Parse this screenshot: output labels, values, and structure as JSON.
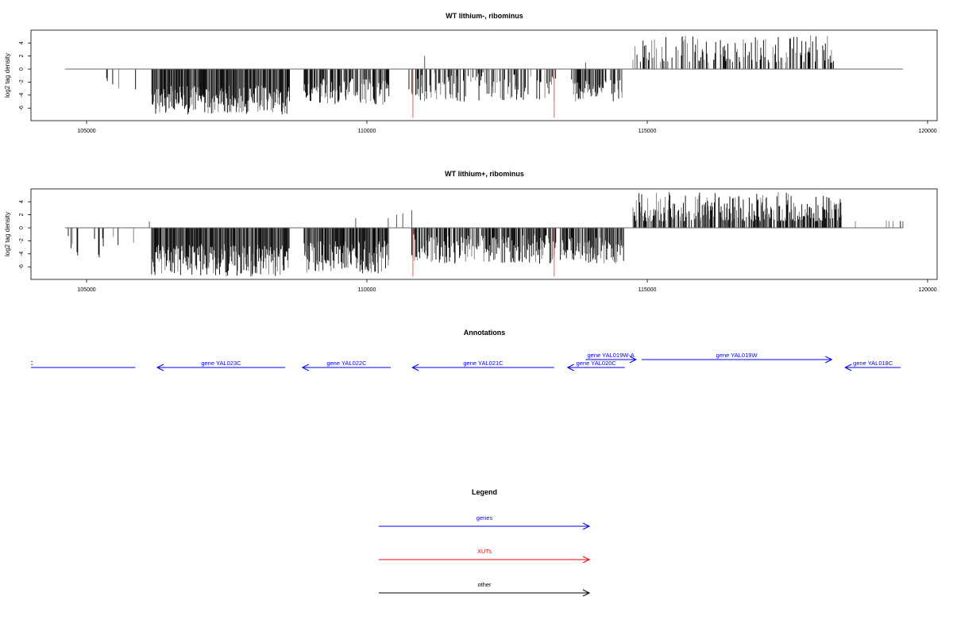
{
  "colors": {
    "gene": "#0000ff",
    "xut": "#ff0000",
    "other": "#000000",
    "bars": "#000000"
  },
  "chart_data": [
    {
      "type": "bar",
      "title": "WT lithium-, ribominus",
      "ylabel": "log2 tag density",
      "xlim": [
        104000,
        120300
      ],
      "ylim": [
        -8,
        6
      ],
      "xticks": [
        105000,
        110000,
        115000,
        120000
      ],
      "xtick_labels": [
        "105000",
        "110000",
        "115000",
        "120000"
      ],
      "yticks": [
        -6,
        -4,
        -2,
        0,
        2,
        4
      ],
      "ytick_labels": [
        "-6",
        "-4",
        "-2",
        "0",
        "2",
        "4"
      ],
      "baseline_range": [
        104618,
        119560
      ],
      "regions": [
        {
          "start": 104650,
          "end": 105900,
          "min": -4,
          "max": -1,
          "density": 0.08
        },
        {
          "start": 106160,
          "end": 108630,
          "min": -7,
          "max": -2.5,
          "density": 1
        },
        {
          "start": 108880,
          "end": 110400,
          "min": -5.5,
          "max": -1.5,
          "density": 0.8
        },
        {
          "start": 110750,
          "end": 113370,
          "min": -5,
          "max": -0.5,
          "density": 0.45
        },
        {
          "start": 113650,
          "end": 114575,
          "min": -5,
          "max": -1.5,
          "density": 0.7
        },
        {
          "start": 114745,
          "end": 118330,
          "min": 1,
          "max": 5.2,
          "density": 0.45
        }
      ],
      "spikes": [
        {
          "x": 111030,
          "y": 2
        },
        {
          "x": 113900,
          "y": 1
        }
      ],
      "xut_markers": [
        110820,
        113340
      ],
      "xut_depth": -7.5
    },
    {
      "type": "bar",
      "title": "WT lithium+, ribominus",
      "ylabel": "log2 tag density",
      "xlim": [
        104000,
        120300
      ],
      "ylim": [
        -8,
        6
      ],
      "xticks": [
        105000,
        110000,
        115000,
        120000
      ],
      "xtick_labels": [
        "105000",
        "110000",
        "115000",
        "120000"
      ],
      "yticks": [
        -6,
        -4,
        -2,
        0,
        2,
        4
      ],
      "ytick_labels": [
        "-6",
        "-4",
        "-2",
        "0",
        "2",
        "4"
      ],
      "baseline_range": [
        104618,
        119560
      ],
      "regions": [
        {
          "start": 104650,
          "end": 105900,
          "min": -5,
          "max": -1,
          "density": 0.12
        },
        {
          "start": 106160,
          "end": 108630,
          "min": -7.5,
          "max": -2.5,
          "density": 1
        },
        {
          "start": 108880,
          "end": 110400,
          "min": -7,
          "max": -2,
          "density": 1
        },
        {
          "start": 110800,
          "end": 113370,
          "min": -5.5,
          "max": -1,
          "density": 0.8
        },
        {
          "start": 113450,
          "end": 114580,
          "min": -5.5,
          "max": -1.5,
          "density": 0.9
        },
        {
          "start": 114745,
          "end": 118500,
          "min": 1,
          "max": 5.5,
          "density": 0.8
        },
        {
          "start": 118700,
          "end": 119560,
          "min": 1,
          "max": 2,
          "density": 0.04
        }
      ],
      "spikes": [
        {
          "x": 106120,
          "y": 1
        },
        {
          "x": 109800,
          "y": 1.5
        },
        {
          "x": 110380,
          "y": 1.5
        },
        {
          "x": 110530,
          "y": 2
        },
        {
          "x": 110640,
          "y": 2.2
        },
        {
          "x": 110800,
          "y": 2.7
        },
        {
          "x": 119560,
          "y": 1
        }
      ],
      "xut_markers": [
        110820,
        113340
      ],
      "xut_depth": -7.5
    }
  ],
  "annotations": {
    "title": "Annotations",
    "features": [
      {
        "label": "C",
        "start": 103500,
        "end": 105870,
        "strand": "-",
        "row": 1
      },
      {
        "label": "gene YAL023C",
        "start": 106260,
        "end": 108540,
        "strand": "-",
        "row": 1
      },
      {
        "label": "gene YAL022C",
        "start": 108850,
        "end": 110425,
        "strand": "-",
        "row": 1
      },
      {
        "label": "gene YAL021C",
        "start": 110810,
        "end": 113340,
        "strand": "-",
        "row": 1
      },
      {
        "label": "gene YAL020C",
        "start": 113580,
        "end": 114600,
        "strand": "-",
        "row": 1
      },
      {
        "label": "gene YAL019W-A",
        "start": 113900,
        "end": 114800,
        "strand": "+",
        "row": 0
      },
      {
        "label": "gene YAL019W",
        "start": 114900,
        "end": 118290,
        "strand": "+",
        "row": 0
      },
      {
        "label": "gene YAL018C",
        "start": 118530,
        "end": 119520,
        "strand": "-",
        "row": 1
      }
    ]
  },
  "legend": {
    "title": "Legend",
    "items": [
      {
        "label": "genes",
        "color": "#0000ff"
      },
      {
        "label": "XUTs",
        "color": "#ff0000"
      },
      {
        "label": "other",
        "color": "#000000"
      }
    ]
  }
}
